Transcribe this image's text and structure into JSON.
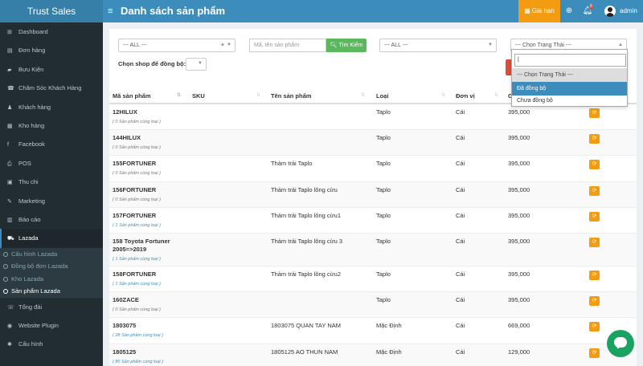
{
  "header": {
    "brand": "Trust Sales",
    "menu_icon": "≡",
    "title": "Danh sách sản phẩm",
    "renew_label": "Gia hạn",
    "notif_count": "8",
    "user": "admin",
    "colors": {
      "header": "#3c8dbc",
      "brand": "#367fa9",
      "renew": "#f39c12"
    }
  },
  "sidebar": {
    "items": [
      {
        "label": "Dashboard",
        "icon": "dashboard-icon",
        "glyph": "⊞"
      },
      {
        "label": "Đơn hàng",
        "icon": "cart-icon",
        "glyph": "▤"
      },
      {
        "label": "Bưu Kiện",
        "icon": "truck-icon",
        "glyph": "▰"
      },
      {
        "label": "Chăm Sóc Khách Hàng",
        "icon": "support-icon",
        "glyph": "☎"
      },
      {
        "label": "Khách hàng",
        "icon": "users-icon",
        "glyph": "♟"
      },
      {
        "label": "Kho hàng",
        "icon": "warehouse-icon",
        "glyph": "▦"
      },
      {
        "label": "Facebook",
        "icon": "facebook-icon",
        "glyph": "f"
      },
      {
        "label": "POS",
        "icon": "pos-icon",
        "glyph": "⎙"
      },
      {
        "label": "Thu chi",
        "icon": "money-icon",
        "glyph": "▣"
      },
      {
        "label": "Marketing",
        "icon": "marketing-icon",
        "glyph": "✎"
      },
      {
        "label": "Báo cáo",
        "icon": "chart-icon",
        "glyph": "▥"
      },
      {
        "label": "Lazada",
        "icon": "shop-icon",
        "glyph": "⛟"
      }
    ],
    "sub_items": [
      "Cấu hình Lazada",
      "Đồng bộ đơn Lazada",
      "Kho Lazada",
      "Sản phẩm Lazada"
    ],
    "bottom_items": [
      {
        "label": "Tổng đài",
        "icon": "phone-icon",
        "glyph": "☏"
      },
      {
        "label": "Website Plugin",
        "icon": "globe-icon",
        "glyph": "◉"
      },
      {
        "label": "Cấu hình",
        "icon": "gear-icon",
        "glyph": "✱"
      }
    ]
  },
  "filters": {
    "shop_select": "--- ALL ---",
    "search_placeholder": "Mã, tên sản phẩm",
    "search_button": "Tìm Kiếm",
    "type_select": "--- ALL ---",
    "status_select": "--- Chọn Trạng Thái ---",
    "sync_shop_label": "Chọn shop để đồng bộ:"
  },
  "status_dropdown": {
    "options": [
      "--- Chọn Trạng Thái ---",
      "Đã đồng bộ",
      "Chưa đồng bộ"
    ]
  },
  "table": {
    "headers": [
      "Mã sản phẩm",
      "SKU",
      "Tên sản phẩm",
      "Loại",
      "Đơn vị",
      "G"
    ],
    "rows": [
      {
        "code": "12HILUX",
        "same": "( 0 Sản phẩm cùng loại )",
        "name": "",
        "type": "Taplo",
        "unit": "Cái",
        "price": "395,000"
      },
      {
        "code": "144HILUX",
        "same": "( 0 Sản phẩm cùng loại )",
        "name": "",
        "type": "Taplo",
        "unit": "Cái",
        "price": "395,000"
      },
      {
        "code": "155FORTUNER",
        "same": "( 0 Sản phẩm cùng loại )",
        "name": "Thảm trải Taplo",
        "type": "Taplo",
        "unit": "Cái",
        "price": "395,000"
      },
      {
        "code": "156FORTUNER",
        "same": "( 0 Sản phẩm cùng loại )",
        "name": "Thảm trải Taplo lông cừu",
        "type": "Taplo",
        "unit": "Cái",
        "price": "395,000"
      },
      {
        "code": "157FORTUNER",
        "same": "( 1 Sản phẩm cùng loại )",
        "name": "Thảm trải Taplo lông cừu1",
        "type": "Taplo",
        "unit": "Cái",
        "price": "395,000"
      },
      {
        "code": "158 Toyota Fortuner",
        "code2": "2005=>2019",
        "same": "( 1 Sản phẩm cùng loại )",
        "name": "Thảm trải Taplo lông cừu 3",
        "type": "Taplo",
        "unit": "Cái",
        "price": "395,000"
      },
      {
        "code": "158FORTUNER",
        "same": "( 1 Sản phẩm cùng loại )",
        "name": "Thảm trải Taplo lông cừu2",
        "type": "Taplo",
        "unit": "Cái",
        "price": "395,000"
      },
      {
        "code": "160ZACE",
        "same": "( 0 Sản phẩm cùng loại )",
        "name": "",
        "type": "Taplo",
        "unit": "Cái",
        "price": "395,000"
      },
      {
        "code": "1803075",
        "same": "( 28 Sản phẩm cùng loại )",
        "name": "1803075 QUAN TAY NAM",
        "type": "Mặc Định",
        "unit": "Cái",
        "price": "669,000"
      },
      {
        "code": "1805125",
        "same": "( 80 Sản phẩm cùng loại )",
        "name": "1805125 AO THUN NAM",
        "type": "Mặc Định",
        "unit": "Cái",
        "price": "129,000"
      }
    ]
  }
}
